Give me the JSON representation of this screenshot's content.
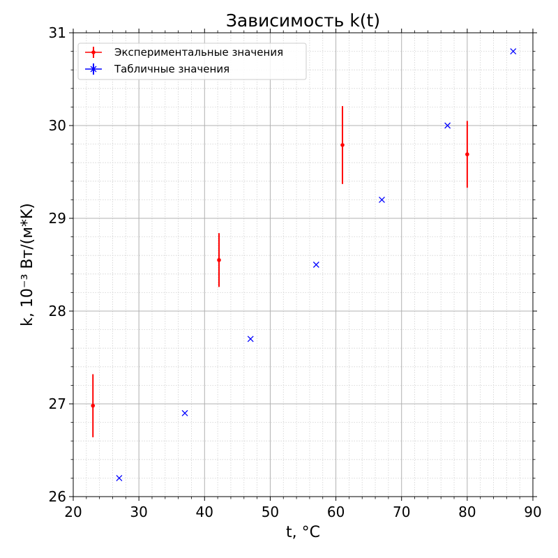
{
  "chart_data": {
    "type": "scatter",
    "title": "Зависимость k(t)",
    "xlabel": "t, °C",
    "ylabel": "k, 10⁻³ Вт/(м*K)",
    "xlim": [
      20,
      90
    ],
    "ylim": [
      26,
      31
    ],
    "x_ticks": [
      20,
      30,
      40,
      50,
      60,
      70,
      80,
      90
    ],
    "y_ticks": [
      26,
      27,
      28,
      29,
      30,
      31
    ],
    "grid": {
      "major": true,
      "minor": true
    },
    "legend_position": "top-left",
    "series": [
      {
        "name": "Экспериментальные значения",
        "marker": "dot-with-errorbar",
        "color": "#ff0000",
        "points": [
          {
            "x": 23,
            "y": 26.98,
            "yerr": 0.34
          },
          {
            "x": 42.2,
            "y": 28.55,
            "yerr": 0.29
          },
          {
            "x": 61,
            "y": 29.79,
            "yerr": 0.42
          },
          {
            "x": 80,
            "y": 29.69,
            "yerr": 0.36
          }
        ]
      },
      {
        "name": "Табличные значения",
        "marker": "x",
        "color": "#0000ff",
        "points": [
          {
            "x": 27,
            "y": 26.2
          },
          {
            "x": 37,
            "y": 26.9
          },
          {
            "x": 47,
            "y": 27.7
          },
          {
            "x": 57,
            "y": 28.5
          },
          {
            "x": 67,
            "y": 29.2
          },
          {
            "x": 77,
            "y": 30.0
          },
          {
            "x": 87,
            "y": 30.8
          }
        ]
      }
    ]
  }
}
